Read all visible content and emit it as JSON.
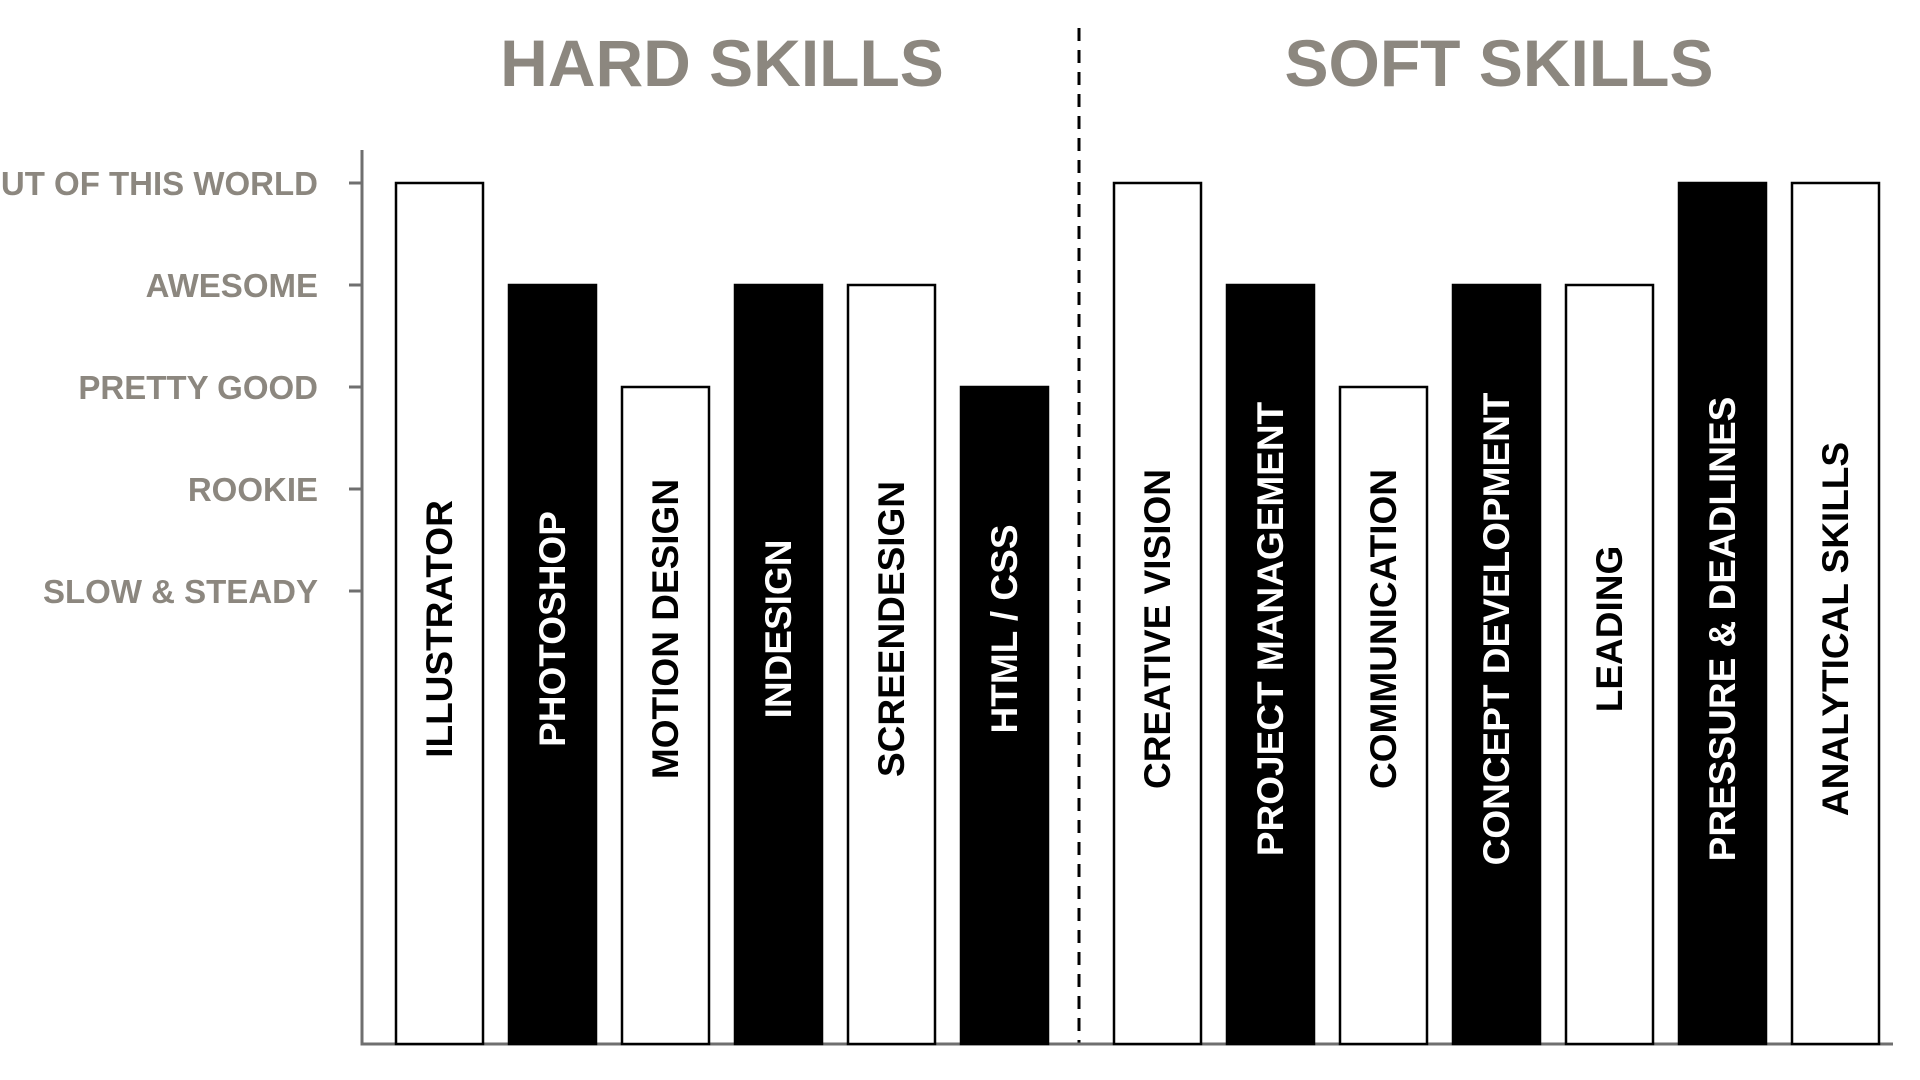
{
  "chart_data": {
    "type": "bar",
    "groups": [
      {
        "title": "HARD SKILLS",
        "categories": [
          "ILLUSTRATOR",
          "PHOTOSHOP",
          "MOTION DESIGN",
          "INDESIGN",
          "SCREENDESIGN",
          "HTML / CSS"
        ]
      },
      {
        "title": "SOFT SKILLS",
        "categories": [
          "CREATIVE VISION",
          "PROJECT MANAGEMENT",
          "COMMUNICATION",
          "CONCEPT DEVELOPMENT",
          "LEADING",
          "PRESSURE & DEADLINES",
          "ANALYTICAL SKILLS"
        ]
      }
    ],
    "categories": [
      "ILLUSTRATOR",
      "PHOTOSHOP",
      "MOTION DESIGN",
      "INDESIGN",
      "SCREENDESIGN",
      "HTML / CSS",
      "CREATIVE VISION",
      "PROJECT MANAGEMENT",
      "COMMUNICATION",
      "CONCEPT DEVELOPMENT",
      "LEADING",
      "PRESSURE & DEADLINES",
      "ANALYTICAL SKILLS"
    ],
    "values": [
      5,
      4,
      3,
      4,
      4,
      3,
      5,
      4,
      3,
      4,
      4,
      5,
      5
    ],
    "value_labels": {
      "1": "SLOW & STEADY",
      "2": "ROOKIE",
      "3": "PRETTY GOOD",
      "4": "AWESOME",
      "5": "OUT OF THIS WORLD"
    },
    "y_ticks": [
      {
        "value": 5,
        "label": "OUT OF THIS WORLD"
      },
      {
        "value": 4,
        "label": "AWESOME"
      },
      {
        "value": 3,
        "label": "PRETTY GOOD"
      },
      {
        "value": 2,
        "label": "ROOKIE"
      },
      {
        "value": 1,
        "label": "SLOW & STEADY"
      }
    ],
    "bar_fills": [
      "white",
      "black",
      "white",
      "black",
      "white",
      "black",
      "white",
      "black",
      "white",
      "black",
      "white",
      "black",
      "white"
    ],
    "ylim": [
      -4.43,
      5
    ],
    "grid": false,
    "legend": "none",
    "colors": {
      "label_gray": "#8c877f",
      "axis_gray": "#6f6f6f",
      "bar_dark": "#000000",
      "bar_light": "#ffffff"
    }
  }
}
